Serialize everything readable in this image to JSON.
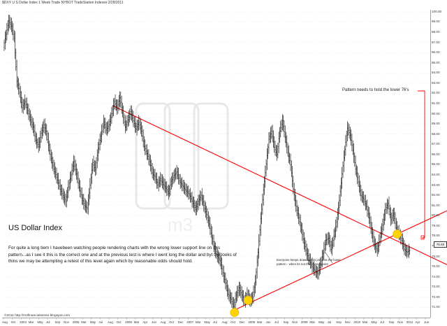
{
  "header": {
    "text": "$DXY  U S Dollar Index  1 Week Trade  NYBOT  TradeStation  Indexes  2/28/2011"
  },
  "title": "US Dollar Index",
  "paragraph": "For quite a long tiem I havebeen watching people rendering charts with the wrong lower support line on this pattern...as I see it this is the correct one and at the previous test is where I went long the dollar and byt the looks of thins we may be attempting a retest of this level again which by reasonable odds should hold.",
  "annotation_upper": "Pattern needs to hold the lower 76's",
  "annotation_lower": "Everyone keeps drawing this point as the lower pattern - when its not the correct point",
  "copyright": "©2011 http://m3financialsense.blogspot.com",
  "last_value_label": "76.60",
  "colors": {
    "price": "#000000",
    "trendline": "#ff0000",
    "highlight": "#ffd400",
    "grid": "#dddddd"
  },
  "chart_data": {
    "type": "line",
    "title": "US Dollar Index",
    "xlabel": "",
    "ylabel": "",
    "ylim": [
      70.0,
      100.2
    ],
    "y_ticks": [
      71,
      72,
      73,
      74,
      75,
      76,
      77,
      78,
      79,
      80,
      81,
      82,
      83,
      84,
      85,
      86,
      87,
      88,
      89,
      90,
      91,
      92,
      93,
      94,
      95,
      96,
      97,
      98,
      99,
      100
    ],
    "y_tick_labels": [
      "71.00",
      "72.00",
      "73.00",
      "74.00",
      "75.00",
      "76.00",
      "77.00",
      "78.00",
      "79.00",
      "80.00",
      "81.00",
      "82.00",
      "83.00",
      "84.00",
      "85.00",
      "86.00",
      "87.00",
      "88.00",
      "89.00",
      "90.00",
      "91.00",
      "92.00",
      "93.00",
      "94.00",
      "95.00",
      "96.00",
      "97.00",
      "98.00",
      "99.00",
      "100.00"
    ],
    "x_tick_labels": [
      "Aug",
      "Oct",
      "2004",
      "Mar",
      "May",
      "Jul",
      "Sep",
      "Nov",
      "2005",
      "Mar",
      "May",
      "Jul",
      "Aug",
      "Oct",
      "2006",
      "Mar",
      "Apr",
      "Jun",
      "Aug",
      "Oct",
      "Dec",
      "2007",
      "Mar",
      "May",
      "Jul",
      "Aug",
      "Oct",
      "Dec",
      "2008",
      "Mar",
      "Jun",
      "Jul",
      "Sep",
      "Nov",
      "2009",
      "Mar",
      "May",
      "Jul",
      "Sep",
      "Nov",
      "2010",
      "Mar",
      "May",
      "Jul",
      "Sep",
      "Nov",
      "2011",
      "Apr",
      "Jun"
    ],
    "series": [
      {
        "values": [
          96.5,
          97.8,
          99.1,
          98.6,
          97.4,
          93.2,
          92.1,
          90.6,
          91.2,
          90.3,
          89.4,
          88.7,
          87.4,
          86.8,
          88.1,
          88.9,
          88.0,
          86.4,
          85.2,
          84.3,
          83.5,
          82.6,
          82.0,
          81.4,
          82.8,
          84.0,
          85.3,
          84.1,
          82.8,
          81.7,
          81.0,
          80.7,
          83.0,
          85.2,
          84.5,
          86.6,
          87.8,
          89.2,
          88.4,
          88.9,
          90.0,
          91.2,
          90.5,
          91.6,
          90.1,
          88.7,
          89.4,
          90.2,
          89.3,
          88.5,
          89.2,
          88.3,
          86.8,
          86.1,
          85.3,
          84.2,
          83.8,
          83.0,
          83.6,
          83.1,
          82.7,
          82.2,
          83.4,
          83.9,
          84.3,
          83.4,
          83.0,
          82.6,
          82.3,
          81.9,
          81.2,
          80.6,
          81.4,
          82.0,
          81.0,
          80.1,
          79.2,
          77.8,
          76.7,
          76.0,
          75.6,
          74.4,
          73.4,
          72.3,
          71.8,
          71.1,
          72.2,
          72.9,
          72.2,
          71.6,
          72.3,
          71.6,
          72.0,
          73.5,
          76.4,
          79.7,
          82.5,
          85.1,
          87.5,
          88.3,
          86.7,
          86.0,
          88.3,
          89.3,
          87.7,
          86.2,
          85.0,
          82.6,
          80.9,
          79.8,
          78.6,
          77.3,
          76.3,
          75.6,
          75.0,
          74.6,
          74.3,
          75.2,
          76.3,
          77.6,
          77.8,
          76.7,
          78.0,
          79.4,
          81.5,
          84.1,
          86.5,
          88.6,
          87.9,
          86.4,
          84.6,
          83.3,
          82.0,
          81.6,
          80.9,
          79.8,
          78.3,
          77.1,
          76.6,
          77.9,
          79.1,
          80.6,
          81.2,
          79.6,
          80.2,
          78.8,
          78.2,
          77.6,
          76.7,
          76.4,
          76.6
        ]
      }
    ],
    "annotations": [
      "Pattern needs to hold the lower 76's",
      "Everyone keeps drawing this point as the lower pattern - when its not the correct point"
    ]
  }
}
